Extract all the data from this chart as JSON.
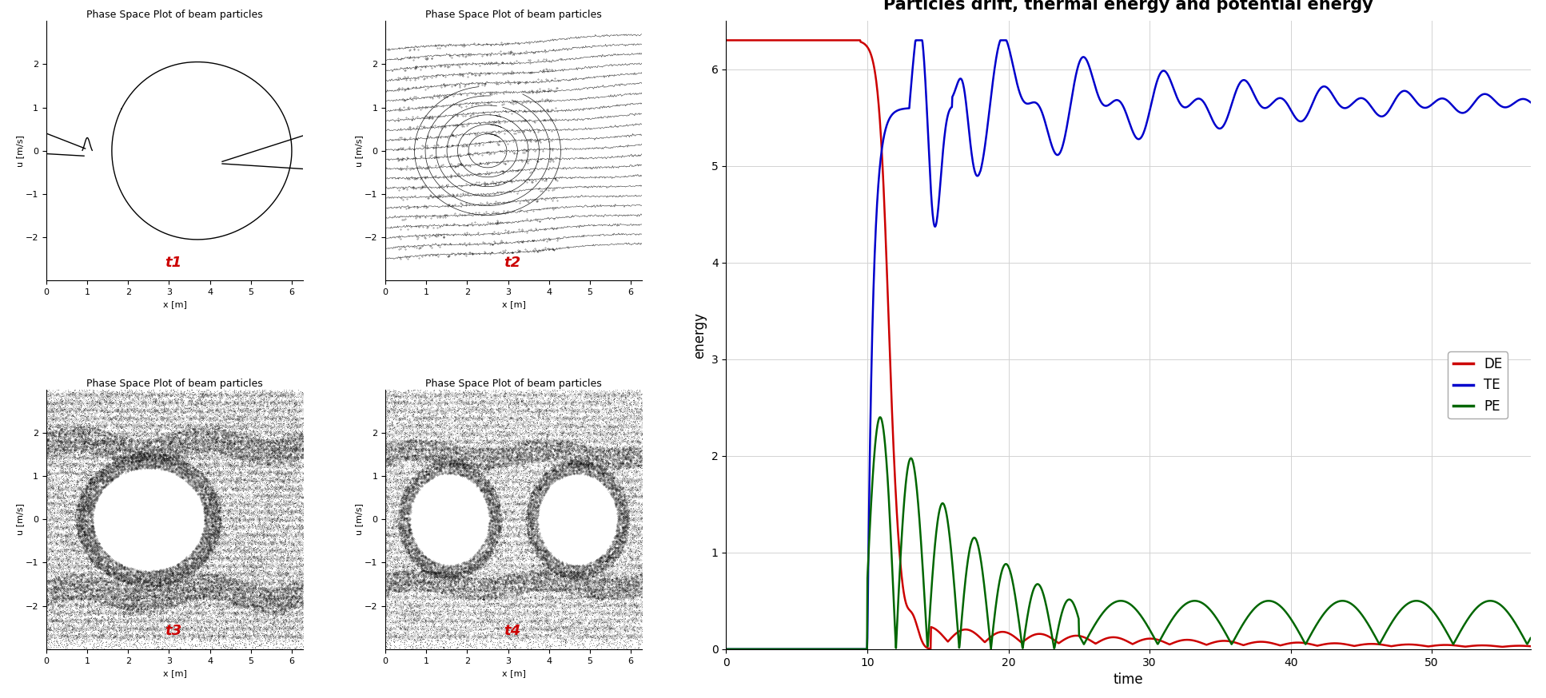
{
  "title_phase": "Phase Space Plot of beam particles",
  "xlabel_phase": "x [m]",
  "ylabel_phase": "u [m/s]",
  "xlim_phase": [
    0,
    6.28
  ],
  "ylim_phase": [
    -3,
    3
  ],
  "xticks_phase": [
    0,
    1,
    2,
    3,
    4,
    5,
    6
  ],
  "yticks_phase": [
    -2,
    -1,
    0,
    1,
    2
  ],
  "t_labels": [
    "t1",
    "t2",
    "t3",
    "t4"
  ],
  "t_label_color": "#cc0000",
  "energy_title": "Particles drift, thermal energy and potential energy",
  "energy_xlabel": "time",
  "energy_ylabel": "energy",
  "energy_xlim": [
    0,
    57
  ],
  "energy_ylim": [
    0,
    6.5
  ],
  "energy_xticks": [
    0,
    10,
    20,
    30,
    40,
    50
  ],
  "energy_yticks": [
    0,
    1,
    2,
    3,
    4,
    5,
    6
  ],
  "legend_labels": [
    "DE",
    "TE",
    "PE"
  ],
  "legend_colors": [
    "#cc0000",
    "#0000cc",
    "#006600"
  ],
  "background_color": "#ffffff"
}
